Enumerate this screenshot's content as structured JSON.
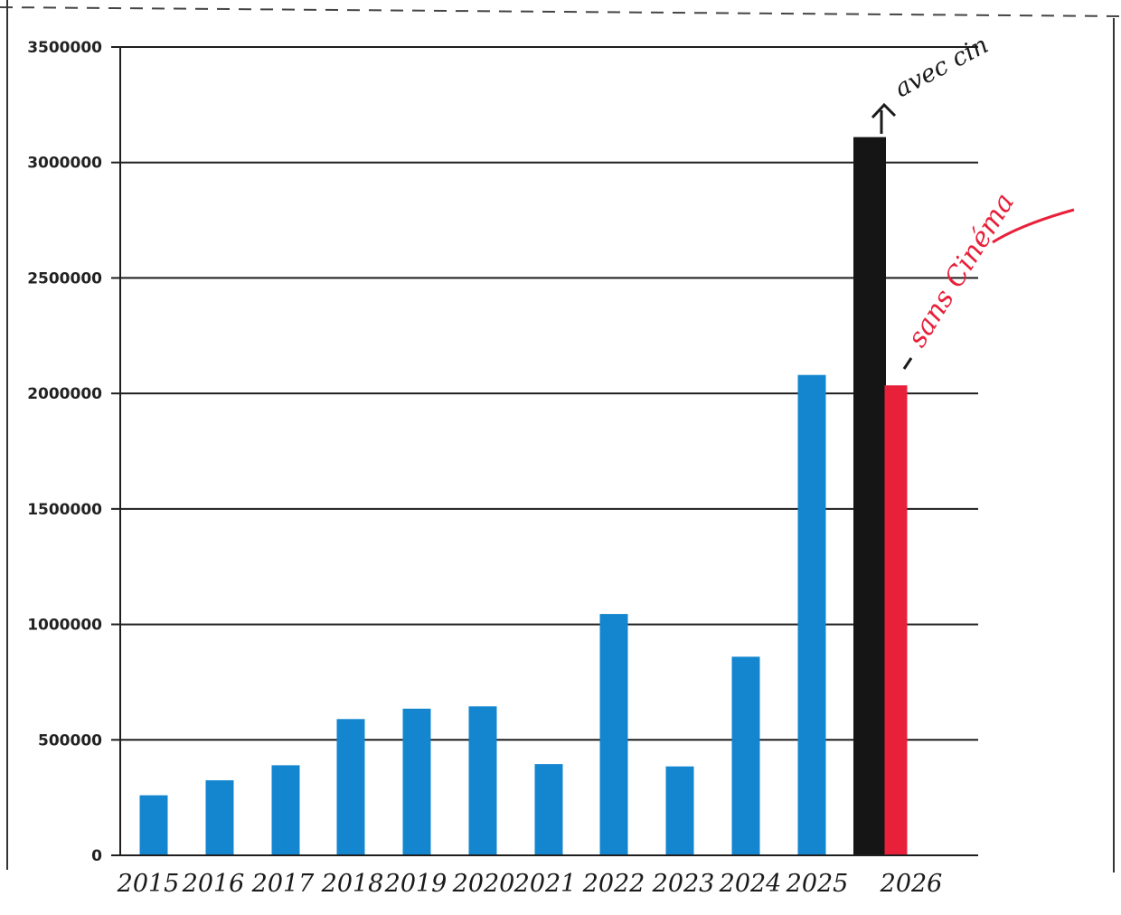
{
  "chart_data": {
    "type": "bar",
    "title": "",
    "xlabel": "",
    "ylabel": "",
    "ylim": [
      0,
      3500000
    ],
    "yticks": [
      0,
      500000,
      1000000,
      1500000,
      2000000,
      2500000,
      3000000,
      3500000
    ],
    "ytick_labels": [
      "0",
      "500000",
      "1000000",
      "1500000",
      "2000000",
      "2500000",
      "3000000",
      "3500000"
    ],
    "grid": true,
    "categories": [
      "2015",
      "2016",
      "2017",
      "2018",
      "2019",
      "2020",
      "2021",
      "2022",
      "2023",
      "2024",
      "2025",
      "2026",
      "2026"
    ],
    "x_labels_handwritten": [
      "2015",
      "2016",
      "2017",
      "2018",
      "2019",
      "2020",
      "2021",
      "2022",
      "2023",
      "2024",
      "2025",
      "2026"
    ],
    "values": [
      260000,
      325000,
      390000,
      590000,
      635000,
      645000,
      395000,
      1045000,
      385000,
      860000,
      2080000,
      3110000,
      2035000
    ],
    "colors": {
      "printed_bars": "#1486cf",
      "avec_bar": "#151515",
      "sans_bar": "#e8203a",
      "handwriting": "#1a1a1a",
      "handwriting_red": "#e8203a"
    },
    "annotations": [
      {
        "text": "avec cin",
        "target": "2026 black bar",
        "color": "#1a1a1a"
      },
      {
        "text": "sans Cinéma",
        "target": "2026 red bar",
        "color": "#e8203a"
      }
    ]
  }
}
